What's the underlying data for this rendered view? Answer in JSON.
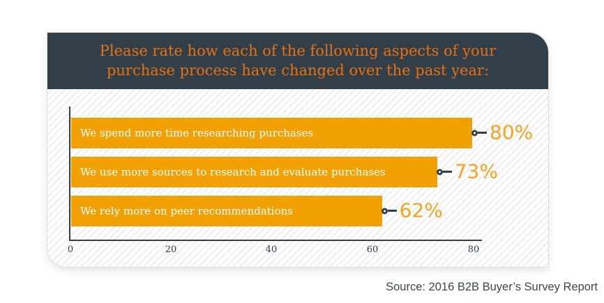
{
  "header": {
    "title": "Please rate how each of the following aspects of your purchase process have changed over the past year:",
    "background_color": "#333f48",
    "title_color": "#e8700f"
  },
  "chart_data": {
    "type": "bar",
    "orientation": "horizontal",
    "categories": [
      "We spend more time researching purchases",
      "We use more sources to research and evaluate purchases",
      "We rely more on peer recommendations"
    ],
    "values": [
      80,
      73,
      62
    ],
    "value_labels": [
      "80%",
      "73%",
      "62%"
    ],
    "x_ticks": [
      "0",
      "20",
      "40",
      "60",
      "80"
    ],
    "xlim": [
      0,
      80
    ],
    "grid": false,
    "legend": false,
    "bar_color": "#f2a104",
    "bar_label_color": "#ffffff",
    "value_label_color": "#f5a31b",
    "axis_color": "#333f48",
    "marker": "circle-with-connector-line"
  },
  "footer": {
    "source": "Source: 2016 B2B Buyer’s Survey Report"
  }
}
